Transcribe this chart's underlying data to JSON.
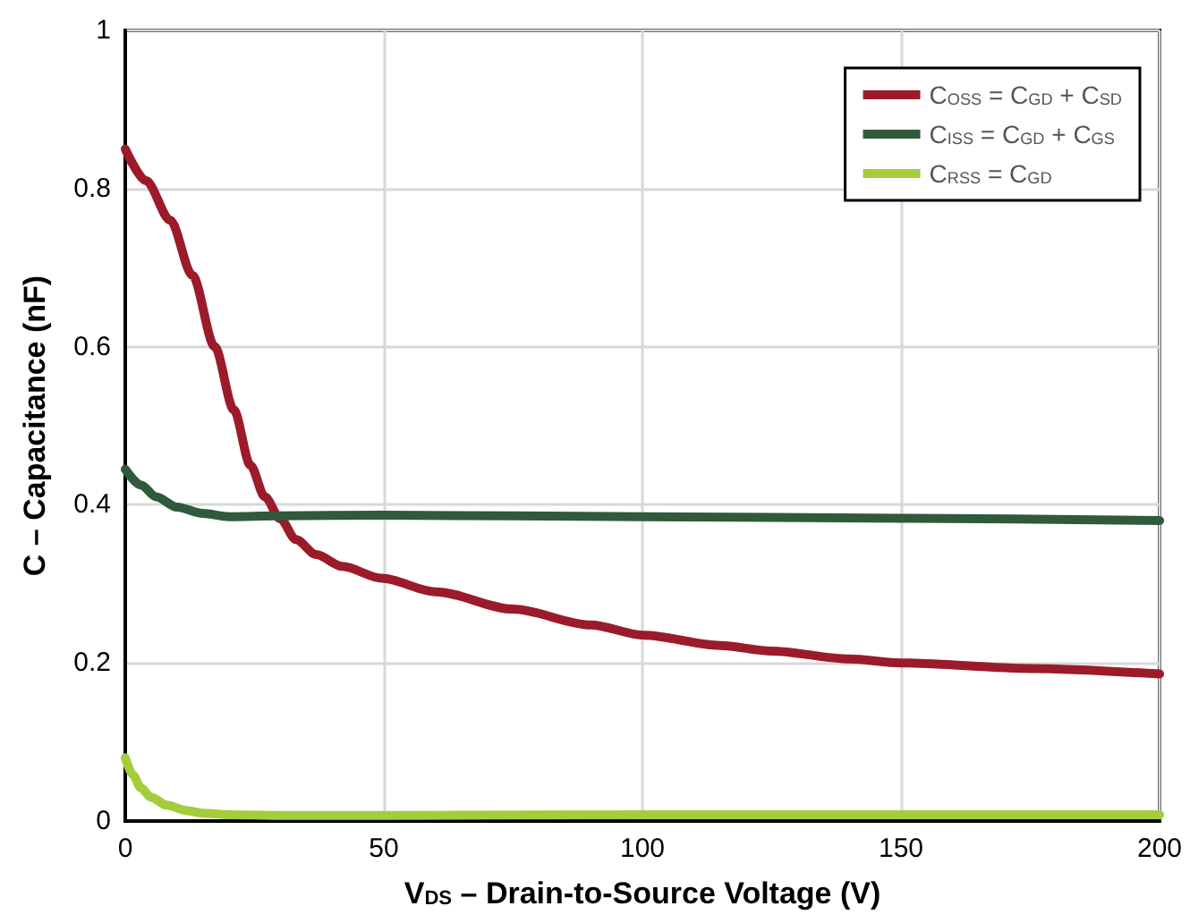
{
  "chart_data": {
    "type": "line",
    "xlabel": "V$_{DS}$ – Drain-to-Source Voltage (V)",
    "ylabel": "C – Capacitance (nF)",
    "xlim": [
      0,
      200
    ],
    "xticks": [
      0,
      50,
      100,
      150,
      200
    ],
    "ylim": [
      0,
      1
    ],
    "yticks": [
      0,
      0.2,
      0.4,
      0.6,
      0.8,
      1
    ],
    "grid": true,
    "legend": "top right",
    "marker": "none",
    "line_style": "solid",
    "series": [
      {
        "name": "C$_{OSS}$ = C$_{GD}$ + C$_{SD}$",
        "color": "#9b1b2a",
        "x": [
          0,
          4,
          8.7,
          13,
          17.3,
          21,
          24.2,
          27,
          30,
          33,
          36.9,
          42,
          49.6,
          60,
          75,
          90,
          100.3,
          115,
          125,
          140,
          150,
          175,
          200
        ],
        "values": [
          0.85,
          0.81,
          0.76,
          0.69,
          0.6,
          0.52,
          0.45,
          0.41,
          0.382,
          0.356,
          0.337,
          0.322,
          0.307,
          0.29,
          0.268,
          0.248,
          0.235,
          0.222,
          0.215,
          0.205,
          0.2,
          0.193,
          0.186
        ]
      },
      {
        "name": "C$_{ISS}$ = C$_{GD}$ + C$_{GS}$",
        "color": "#2f5a3c",
        "x": [
          0,
          3,
          6,
          10,
          15,
          20,
          30,
          50,
          100,
          150,
          200
        ],
        "values": [
          0.445,
          0.425,
          0.41,
          0.397,
          0.389,
          0.385,
          0.386,
          0.387,
          0.385,
          0.383,
          0.38
        ]
      },
      {
        "name": "C$_{RSS}$ = C$_{GD}$",
        "color": "#a3cd3a",
        "x": [
          0,
          1.5,
          3,
          5,
          8,
          12,
          15,
          20,
          30,
          50,
          100,
          150,
          200
        ],
        "values": [
          0.08,
          0.058,
          0.042,
          0.03,
          0.02,
          0.013,
          0.01,
          0.008,
          0.007,
          0.007,
          0.008,
          0.008,
          0.008
        ]
      }
    ]
  }
}
